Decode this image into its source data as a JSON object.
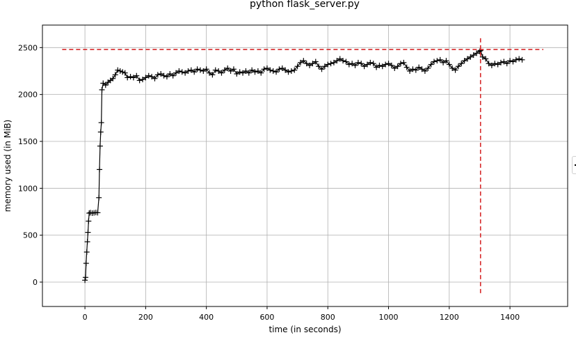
{
  "chart_data": {
    "type": "line",
    "title": "python flask_server.py",
    "xlabel": "time (in seconds)",
    "ylabel": "memory used (in MiB)",
    "xlim": [
      -140,
      1590
    ],
    "ylim": [
      -260,
      2740
    ],
    "xticks": [
      0,
      200,
      400,
      600,
      800,
      1000,
      1200,
      1400
    ],
    "yticks": [
      0,
      500,
      1000,
      1500,
      2000,
      2500
    ],
    "grid": true,
    "marker": "+",
    "series_color": "#000000",
    "peak_color": "#d62728",
    "series": [
      {
        "points": [
          [
            0,
            20
          ],
          [
            2,
            50
          ],
          [
            4,
            200
          ],
          [
            6,
            320
          ],
          [
            8,
            430
          ],
          [
            10,
            530
          ],
          [
            12,
            650
          ],
          [
            14,
            735
          ],
          [
            18,
            740
          ],
          [
            24,
            735
          ],
          [
            30,
            738
          ],
          [
            36,
            742
          ],
          [
            42,
            740
          ],
          [
            46,
            900
          ],
          [
            48,
            1200
          ],
          [
            50,
            1450
          ],
          [
            52,
            1600
          ],
          [
            54,
            1700
          ],
          [
            56,
            2050
          ],
          [
            60,
            2120
          ],
          [
            68,
            2100
          ],
          [
            76,
            2130
          ],
          [
            84,
            2150
          ],
          [
            92,
            2170
          ],
          [
            100,
            2210
          ],
          [
            108,
            2260
          ],
          [
            116,
            2250
          ],
          [
            124,
            2240
          ],
          [
            132,
            2230
          ],
          [
            140,
            2180
          ],
          [
            150,
            2190
          ],
          [
            160,
            2180
          ],
          [
            170,
            2200
          ],
          [
            180,
            2150
          ],
          [
            190,
            2160
          ],
          [
            200,
            2180
          ],
          [
            210,
            2200
          ],
          [
            220,
            2190
          ],
          [
            230,
            2170
          ],
          [
            240,
            2210
          ],
          [
            250,
            2220
          ],
          [
            260,
            2200
          ],
          [
            270,
            2190
          ],
          [
            280,
            2220
          ],
          [
            290,
            2200
          ],
          [
            300,
            2230
          ],
          [
            310,
            2250
          ],
          [
            320,
            2240
          ],
          [
            330,
            2230
          ],
          [
            340,
            2250
          ],
          [
            350,
            2260
          ],
          [
            360,
            2240
          ],
          [
            370,
            2270
          ],
          [
            380,
            2260
          ],
          [
            390,
            2250
          ],
          [
            400,
            2270
          ],
          [
            410,
            2230
          ],
          [
            420,
            2210
          ],
          [
            430,
            2260
          ],
          [
            440,
            2250
          ],
          [
            450,
            2230
          ],
          [
            460,
            2260
          ],
          [
            470,
            2280
          ],
          [
            480,
            2250
          ],
          [
            490,
            2270
          ],
          [
            500,
            2220
          ],
          [
            510,
            2240
          ],
          [
            520,
            2230
          ],
          [
            530,
            2250
          ],
          [
            540,
            2230
          ],
          [
            550,
            2260
          ],
          [
            560,
            2240
          ],
          [
            570,
            2250
          ],
          [
            580,
            2230
          ],
          [
            590,
            2270
          ],
          [
            600,
            2280
          ],
          [
            610,
            2260
          ],
          [
            620,
            2250
          ],
          [
            630,
            2240
          ],
          [
            640,
            2270
          ],
          [
            650,
            2280
          ],
          [
            660,
            2260
          ],
          [
            670,
            2240
          ],
          [
            680,
            2250
          ],
          [
            690,
            2260
          ],
          [
            700,
            2300
          ],
          [
            710,
            2340
          ],
          [
            720,
            2360
          ],
          [
            730,
            2330
          ],
          [
            740,
            2310
          ],
          [
            750,
            2330
          ],
          [
            760,
            2350
          ],
          [
            770,
            2300
          ],
          [
            780,
            2270
          ],
          [
            790,
            2300
          ],
          [
            800,
            2320
          ],
          [
            810,
            2330
          ],
          [
            820,
            2340
          ],
          [
            830,
            2360
          ],
          [
            840,
            2380
          ],
          [
            850,
            2360
          ],
          [
            860,
            2350
          ],
          [
            870,
            2320
          ],
          [
            880,
            2330
          ],
          [
            890,
            2310
          ],
          [
            900,
            2340
          ],
          [
            910,
            2330
          ],
          [
            920,
            2300
          ],
          [
            930,
            2320
          ],
          [
            940,
            2340
          ],
          [
            950,
            2330
          ],
          [
            960,
            2290
          ],
          [
            970,
            2310
          ],
          [
            980,
            2300
          ],
          [
            990,
            2320
          ],
          [
            1000,
            2330
          ],
          [
            1010,
            2310
          ],
          [
            1020,
            2280
          ],
          [
            1030,
            2300
          ],
          [
            1040,
            2330
          ],
          [
            1050,
            2340
          ],
          [
            1060,
            2290
          ],
          [
            1070,
            2250
          ],
          [
            1080,
            2270
          ],
          [
            1090,
            2260
          ],
          [
            1100,
            2290
          ],
          [
            1110,
            2270
          ],
          [
            1120,
            2250
          ],
          [
            1130,
            2280
          ],
          [
            1140,
            2320
          ],
          [
            1150,
            2350
          ],
          [
            1160,
            2360
          ],
          [
            1170,
            2370
          ],
          [
            1180,
            2340
          ],
          [
            1190,
            2360
          ],
          [
            1200,
            2320
          ],
          [
            1210,
            2280
          ],
          [
            1220,
            2260
          ],
          [
            1230,
            2300
          ],
          [
            1240,
            2330
          ],
          [
            1250,
            2360
          ],
          [
            1260,
            2380
          ],
          [
            1270,
            2400
          ],
          [
            1280,
            2420
          ],
          [
            1290,
            2440
          ],
          [
            1300,
            2460
          ],
          [
            1303,
            2470
          ],
          [
            1310,
            2400
          ],
          [
            1320,
            2380
          ],
          [
            1330,
            2330
          ],
          [
            1340,
            2310
          ],
          [
            1350,
            2330
          ],
          [
            1360,
            2320
          ],
          [
            1370,
            2340
          ],
          [
            1380,
            2350
          ],
          [
            1390,
            2330
          ],
          [
            1400,
            2360
          ],
          [
            1410,
            2350
          ],
          [
            1420,
            2370
          ],
          [
            1430,
            2380
          ],
          [
            1440,
            2370
          ]
        ]
      }
    ],
    "peak": {
      "time": 1303,
      "memory": 2480
    }
  }
}
